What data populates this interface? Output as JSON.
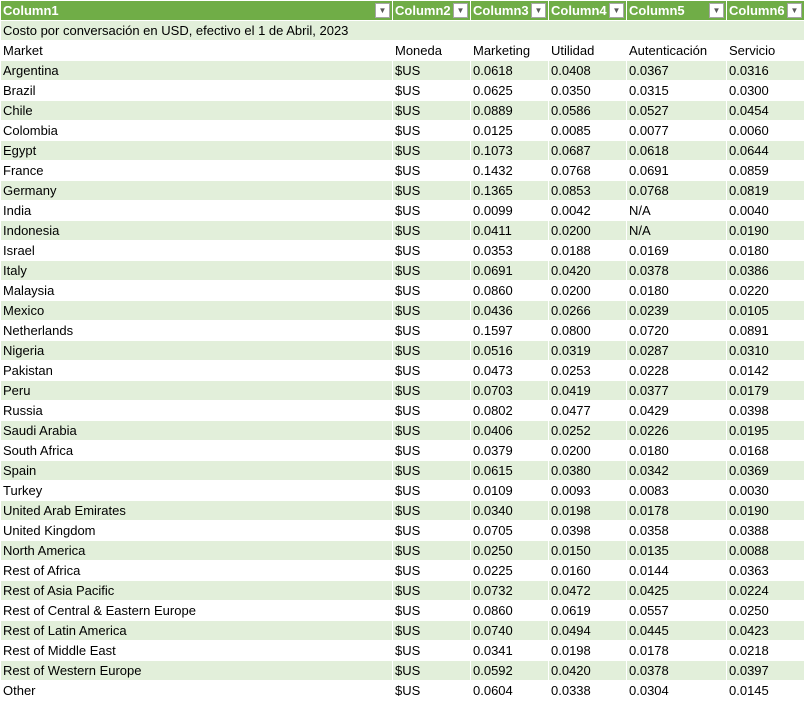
{
  "headers": [
    "Column1",
    "Column2",
    "Column3",
    "Column4",
    "Column5",
    "Column6"
  ],
  "caption": "Costo por conversación en USD, efectivo el 1 de Abril, 2023",
  "subheaders": [
    "Market",
    "Moneda",
    "Marketing",
    "Utilidad",
    "Autenticación",
    "Servicio"
  ],
  "rows": [
    [
      "Argentina",
      "$US",
      "0.0618",
      "0.0408",
      "0.0367",
      "0.0316"
    ],
    [
      "Brazil",
      "$US",
      "0.0625",
      "0.0350",
      "0.0315",
      "0.0300"
    ],
    [
      "Chile",
      "$US",
      "0.0889",
      "0.0586",
      "0.0527",
      "0.0454"
    ],
    [
      "Colombia",
      "$US",
      "0.0125",
      "0.0085",
      "0.0077",
      "0.0060"
    ],
    [
      "Egypt",
      "$US",
      "0.1073",
      "0.0687",
      "0.0618",
      "0.0644"
    ],
    [
      "France",
      "$US",
      "0.1432",
      "0.0768",
      "0.0691",
      "0.0859"
    ],
    [
      "Germany",
      "$US",
      "0.1365",
      "0.0853",
      "0.0768",
      "0.0819"
    ],
    [
      "India",
      "$US",
      "0.0099",
      "0.0042",
      "N/A",
      "0.0040"
    ],
    [
      "Indonesia",
      "$US",
      "0.0411",
      "0.0200",
      "N/A",
      "0.0190"
    ],
    [
      "Israel",
      "$US",
      "0.0353",
      "0.0188",
      "0.0169",
      "0.0180"
    ],
    [
      "Italy",
      "$US",
      "0.0691",
      "0.0420",
      "0.0378",
      "0.0386"
    ],
    [
      "Malaysia",
      "$US",
      "0.0860",
      "0.0200",
      "0.0180",
      "0.0220"
    ],
    [
      "Mexico",
      "$US",
      "0.0436",
      "0.0266",
      "0.0239",
      "0.0105"
    ],
    [
      "Netherlands",
      "$US",
      "0.1597",
      "0.0800",
      "0.0720",
      "0.0891"
    ],
    [
      "Nigeria",
      "$US",
      "0.0516",
      "0.0319",
      "0.0287",
      "0.0310"
    ],
    [
      "Pakistan",
      "$US",
      "0.0473",
      "0.0253",
      "0.0228",
      "0.0142"
    ],
    [
      "Peru",
      "$US",
      "0.0703",
      "0.0419",
      "0.0377",
      "0.0179"
    ],
    [
      "Russia",
      "$US",
      "0.0802",
      "0.0477",
      "0.0429",
      "0.0398"
    ],
    [
      "Saudi Arabia",
      "$US",
      "0.0406",
      "0.0252",
      "0.0226",
      "0.0195"
    ],
    [
      "South Africa",
      "$US",
      "0.0379",
      "0.0200",
      "0.0180",
      "0.0168"
    ],
    [
      "Spain",
      "$US",
      "0.0615",
      "0.0380",
      "0.0342",
      "0.0369"
    ],
    [
      "Turkey",
      "$US",
      "0.0109",
      "0.0093",
      "0.0083",
      "0.0030"
    ],
    [
      "United Arab Emirates",
      "$US",
      "0.0340",
      "0.0198",
      "0.0178",
      "0.0190"
    ],
    [
      "United Kingdom",
      "$US",
      "0.0705",
      "0.0398",
      "0.0358",
      "0.0388"
    ],
    [
      "North America",
      "$US",
      "0.0250",
      "0.0150",
      "0.0135",
      "0.0088"
    ],
    [
      "Rest of Africa",
      "$US",
      "0.0225",
      "0.0160",
      "0.0144",
      "0.0363"
    ],
    [
      "Rest of Asia Pacific",
      "$US",
      "0.0732",
      "0.0472",
      "0.0425",
      "0.0224"
    ],
    [
      "Rest of Central & Eastern Europe",
      "$US",
      "0.0860",
      "0.0619",
      "0.0557",
      "0.0250"
    ],
    [
      "Rest of Latin America",
      "$US",
      "0.0740",
      "0.0494",
      "0.0445",
      "0.0423"
    ],
    [
      "Rest of Middle East",
      "$US",
      "0.0341",
      "0.0198",
      "0.0178",
      "0.0218"
    ],
    [
      "Rest of Western Europe",
      "$US",
      "0.0592",
      "0.0420",
      "0.0378",
      "0.0397"
    ],
    [
      "Other",
      "$US",
      "0.0604",
      "0.0338",
      "0.0304",
      "0.0145"
    ]
  ],
  "colors": {
    "header_bg": "#70ad47",
    "band": "#e2efda"
  }
}
